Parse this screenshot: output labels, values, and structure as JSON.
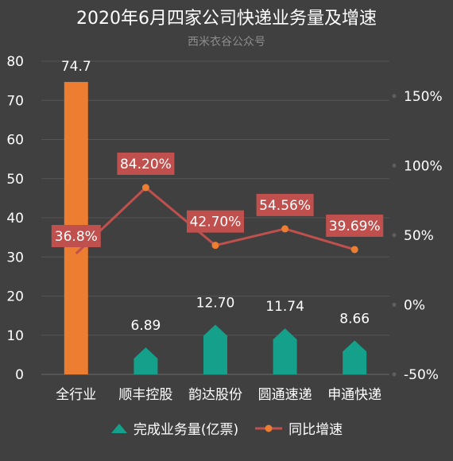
{
  "chart_data": {
    "type": "bar+line",
    "title": "2020年6月四家公司快递业务量及增速",
    "subtitle": "西米衣谷公众号",
    "categories": [
      "全行业",
      "顺丰控股",
      "韵达股份",
      "圆通速递",
      "申通快递"
    ],
    "series": [
      {
        "name": "完成业务量(亿票)",
        "kind": "bar",
        "axis": "left",
        "values": [
          74.7,
          6.89,
          12.7,
          11.74,
          8.66
        ],
        "labels": [
          "74.7",
          "6.89",
          "12.70",
          "11.74",
          "8.66"
        ]
      },
      {
        "name": "同比增速",
        "kind": "line",
        "axis": "right",
        "values": [
          36.8,
          84.2,
          42.7,
          54.56,
          39.69
        ],
        "labels": [
          "36.8%",
          "84.20%",
          "42.70%",
          "54.56%",
          "39.69%"
        ]
      }
    ],
    "y_left": {
      "ylim": [
        0,
        80
      ],
      "ticks": [
        "0",
        "10",
        "20",
        "30",
        "40",
        "50",
        "60",
        "70",
        "80"
      ]
    },
    "y_right": {
      "ylim": [
        -50,
        175
      ],
      "tick_values": [
        -50,
        0,
        50,
        100,
        150
      ],
      "ticks": [
        "-50%",
        "0%",
        "50%",
        "100%",
        "150%"
      ]
    },
    "grid": true,
    "legend_position": "bottom",
    "colors": {
      "background": "#404040",
      "bar_total": "#ED7D31",
      "bar_company": "#14A08A",
      "line": "#C0504D",
      "line_marker": "#ED7D31",
      "label_box": "#C0504D",
      "text": "#FFFFFF",
      "subtitle": "#8C8C8C",
      "grid": "#555555"
    }
  }
}
